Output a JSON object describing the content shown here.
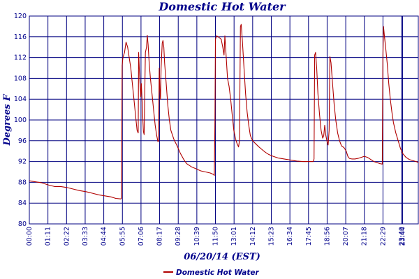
{
  "chart_data": {
    "type": "line",
    "title": "Domestic Hot Water",
    "xlabel": "06/20/14 (EST)",
    "ylabel": "Degrees F",
    "x_unit": "hours",
    "xlim": [
      0,
      24.73
    ],
    "ylim": [
      80,
      120
    ],
    "y_ticks": [
      80,
      84,
      88,
      92,
      96,
      100,
      104,
      108,
      112,
      116,
      120
    ],
    "x_ticks": [
      {
        "label": "00:00",
        "value": 0
      },
      {
        "label": "01:11",
        "value": 1.183
      },
      {
        "label": "02:22",
        "value": 2.367
      },
      {
        "label": "03:33",
        "value": 3.55
      },
      {
        "label": "04:44",
        "value": 4.733
      },
      {
        "label": "05:55",
        "value": 5.917
      },
      {
        "label": "07:06",
        "value": 7.1
      },
      {
        "label": "08:17",
        "value": 8.283
      },
      {
        "label": "09:28",
        "value": 9.467
      },
      {
        "label": "10:39",
        "value": 10.65
      },
      {
        "label": "11:50",
        "value": 11.833
      },
      {
        "label": "13:01",
        "value": 13.017
      },
      {
        "label": "14:12",
        "value": 14.2
      },
      {
        "label": "15:23",
        "value": 15.383
      },
      {
        "label": "16:34",
        "value": 16.567
      },
      {
        "label": "17:45",
        "value": 17.75
      },
      {
        "label": "18:56",
        "value": 18.933
      },
      {
        "label": "20:07",
        "value": 20.117
      },
      {
        "label": "21:18",
        "value": 21.3
      },
      {
        "label": "22:29",
        "value": 22.483
      },
      {
        "label": "23:40",
        "value": 23.667
      },
      {
        "label": "23:44",
        "value": 23.733
      }
    ],
    "grid": true,
    "legend_position": "bottom",
    "series": [
      {
        "name": "Domestic Hot Water",
        "color": "#b00000",
        "points": [
          [
            0,
            88.3
          ],
          [
            0.4,
            88.1
          ],
          [
            0.8,
            87.9
          ],
          [
            1.2,
            87.5
          ],
          [
            1.6,
            87.2
          ],
          [
            2.0,
            87.2
          ],
          [
            2.4,
            87.0
          ],
          [
            2.8,
            86.7
          ],
          [
            3.2,
            86.4
          ],
          [
            3.6,
            86.2
          ],
          [
            4.0,
            85.9
          ],
          [
            4.4,
            85.6
          ],
          [
            4.8,
            85.4
          ],
          [
            5.2,
            85.2
          ],
          [
            5.5,
            84.9
          ],
          [
            5.82,
            84.8
          ],
          [
            5.86,
            85.0
          ],
          [
            5.9,
            110.5
          ],
          [
            5.95,
            112.0
          ],
          [
            6.05,
            113.0
          ],
          [
            6.15,
            115.0
          ],
          [
            6.25,
            114.0
          ],
          [
            6.35,
            112.0
          ],
          [
            6.45,
            110.0
          ],
          [
            6.55,
            107.0
          ],
          [
            6.65,
            104.0
          ],
          [
            6.75,
            101.0
          ],
          [
            6.85,
            98.0
          ],
          [
            6.92,
            97.5
          ],
          [
            6.95,
            113.0
          ],
          [
            7.02,
            108.0
          ],
          [
            7.08,
            104.5
          ],
          [
            7.12,
            107.0
          ],
          [
            7.18,
            103.0
          ],
          [
            7.25,
            97.8
          ],
          [
            7.3,
            97.2
          ],
          [
            7.38,
            113.0
          ],
          [
            7.45,
            114.0
          ],
          [
            7.5,
            116.3
          ],
          [
            7.55,
            114.5
          ],
          [
            7.62,
            111.0
          ],
          [
            7.7,
            108.0
          ],
          [
            7.8,
            105.0
          ],
          [
            7.9,
            102.0
          ],
          [
            8.0,
            99.0
          ],
          [
            8.1,
            97.0
          ],
          [
            8.18,
            95.8
          ],
          [
            8.22,
            96.0
          ],
          [
            8.26,
            110.0
          ],
          [
            8.3,
            106.0
          ],
          [
            8.34,
            104.0
          ],
          [
            8.38,
            110.0
          ],
          [
            8.45,
            114.8
          ],
          [
            8.5,
            115.3
          ],
          [
            8.55,
            114.0
          ],
          [
            8.6,
            111.0
          ],
          [
            8.7,
            107.0
          ],
          [
            8.8,
            103.0
          ],
          [
            8.9,
            100.0
          ],
          [
            9.0,
            98.0
          ],
          [
            9.2,
            96.2
          ],
          [
            9.4,
            95.0
          ],
          [
            9.6,
            93.6
          ],
          [
            9.8,
            92.5
          ],
          [
            10.0,
            91.6
          ],
          [
            10.3,
            91.0
          ],
          [
            10.6,
            90.6
          ],
          [
            10.9,
            90.2
          ],
          [
            11.2,
            90.0
          ],
          [
            11.5,
            89.8
          ],
          [
            11.72,
            89.5
          ],
          [
            11.76,
            89.3
          ],
          [
            11.8,
            100.0
          ],
          [
            11.83,
            115.5
          ],
          [
            11.9,
            116.2
          ],
          [
            12.0,
            116.0
          ],
          [
            12.1,
            115.8
          ],
          [
            12.2,
            115.5
          ],
          [
            12.3,
            114.0
          ],
          [
            12.38,
            112.5
          ],
          [
            12.43,
            116.2
          ],
          [
            12.5,
            113.0
          ],
          [
            12.6,
            108.0
          ],
          [
            12.7,
            106.5
          ],
          [
            12.8,
            104.0
          ],
          [
            12.9,
            101.0
          ],
          [
            13.0,
            98.0
          ],
          [
            13.1,
            96.5
          ],
          [
            13.2,
            95.5
          ],
          [
            13.3,
            94.8
          ],
          [
            13.36,
            96.0
          ],
          [
            13.42,
            118.0
          ],
          [
            13.47,
            118.4
          ],
          [
            13.55,
            115.0
          ],
          [
            13.65,
            110.0
          ],
          [
            13.75,
            105.0
          ],
          [
            13.85,
            101.5
          ],
          [
            13.95,
            99.0
          ],
          [
            14.05,
            97.0
          ],
          [
            14.2,
            96.0
          ],
          [
            14.4,
            95.4
          ],
          [
            14.6,
            94.8
          ],
          [
            14.8,
            94.3
          ],
          [
            15.0,
            93.8
          ],
          [
            15.2,
            93.4
          ],
          [
            15.5,
            93.0
          ],
          [
            15.8,
            92.7
          ],
          [
            16.2,
            92.5
          ],
          [
            16.6,
            92.3
          ],
          [
            17.0,
            92.1
          ],
          [
            17.4,
            92.0
          ],
          [
            17.8,
            92.0
          ],
          [
            18.05,
            92.0
          ],
          [
            18.1,
            92.5
          ],
          [
            18.14,
            112.5
          ],
          [
            18.2,
            113.0
          ],
          [
            18.27,
            110.0
          ],
          [
            18.35,
            105.0
          ],
          [
            18.45,
            101.0
          ],
          [
            18.55,
            98.0
          ],
          [
            18.65,
            96.5
          ],
          [
            18.72,
            97.0
          ],
          [
            18.78,
            99.0
          ],
          [
            18.85,
            97.0
          ],
          [
            18.92,
            96.0
          ],
          [
            19.0,
            95.2
          ],
          [
            19.06,
            98.0
          ],
          [
            19.11,
            112.2
          ],
          [
            19.18,
            111.0
          ],
          [
            19.28,
            107.0
          ],
          [
            19.38,
            103.0
          ],
          [
            19.48,
            100.0
          ],
          [
            19.6,
            97.5
          ],
          [
            19.72,
            96.0
          ],
          [
            19.85,
            95.0
          ],
          [
            20.0,
            94.7
          ],
          [
            20.15,
            94.0
          ],
          [
            20.25,
            93.0
          ],
          [
            20.35,
            92.6
          ],
          [
            20.5,
            92.5
          ],
          [
            20.7,
            92.5
          ],
          [
            20.9,
            92.6
          ],
          [
            21.1,
            92.8
          ],
          [
            21.3,
            93.0
          ],
          [
            21.5,
            92.8
          ],
          [
            21.7,
            92.4
          ],
          [
            21.9,
            92.0
          ],
          [
            22.1,
            91.8
          ],
          [
            22.3,
            91.6
          ],
          [
            22.44,
            91.5
          ],
          [
            22.48,
            112.0
          ],
          [
            22.52,
            118.0
          ],
          [
            22.58,
            116.0
          ],
          [
            22.65,
            114.0
          ],
          [
            22.75,
            111.0
          ],
          [
            22.85,
            107.0
          ],
          [
            22.95,
            104.0
          ],
          [
            23.05,
            101.5
          ],
          [
            23.15,
            99.5
          ],
          [
            23.3,
            97.5
          ],
          [
            23.45,
            96.0
          ],
          [
            23.6,
            94.5
          ],
          [
            23.75,
            93.5
          ],
          [
            23.95,
            92.8
          ],
          [
            24.15,
            92.4
          ],
          [
            24.35,
            92.2
          ],
          [
            24.6,
            92.0
          ],
          [
            24.73,
            91.8
          ]
        ]
      }
    ]
  }
}
